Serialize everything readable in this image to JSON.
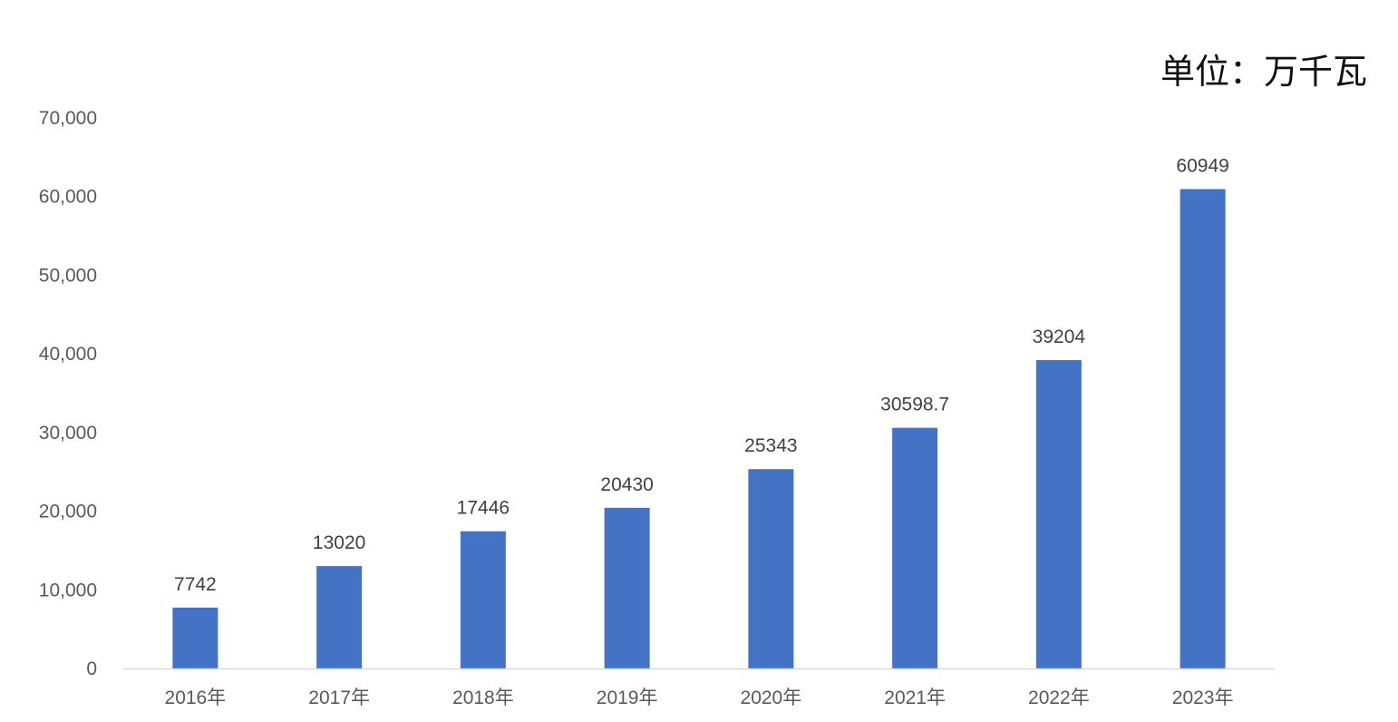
{
  "unit_label": "单位：万千瓦",
  "colors": {
    "bar": "#4472C4",
    "axis": "#D9D9D9",
    "tick_text": "#595959",
    "label_text": "#404040"
  },
  "chart_data": {
    "type": "bar",
    "categories": [
      "2016年",
      "2017年",
      "2018年",
      "2019年",
      "2020年",
      "2021年",
      "2022年",
      "2023年"
    ],
    "values": [
      7742,
      13020,
      17446,
      20430,
      25343,
      30598.7,
      39204,
      60949
    ],
    "data_labels": [
      "7742",
      "13020",
      "17446",
      "20430",
      "25343",
      "30598.7",
      "39204",
      "60949"
    ],
    "ylim": [
      0,
      70000
    ],
    "y_ticks": [
      0,
      10000,
      20000,
      30000,
      40000,
      50000,
      60000,
      70000
    ],
    "y_tick_labels": [
      "0",
      "10,000",
      "20,000",
      "30,000",
      "40,000",
      "50,000",
      "60,000",
      "70,000"
    ],
    "grid": false,
    "legend": "none"
  }
}
